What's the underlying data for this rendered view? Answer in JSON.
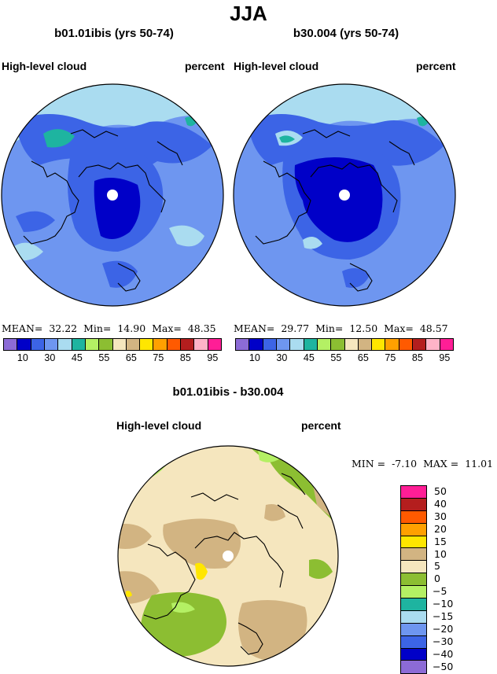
{
  "title": "JJA",
  "panels": [
    {
      "title": "b01.01ibis (yrs 50-74)",
      "variable": "High-level cloud",
      "units": "percent",
      "mean_label": "MEAN=",
      "mean": "32.22",
      "min_label": "Min=",
      "min": "14.90",
      "max_label": "Max=",
      "max": "48.35"
    },
    {
      "title": "b30.004 (yrs 50-74)",
      "variable": "High-level cloud",
      "units": "percent",
      "mean_label": "MEAN=",
      "mean": "29.77",
      "min_label": "Min=",
      "min": "12.50",
      "max_label": "Max=",
      "max": "48.57"
    }
  ],
  "colorbar": {
    "colors": [
      "#8c6bd6",
      "#0000c8",
      "#3c64e6",
      "#6e96f0",
      "#aadcf0",
      "#1eb4a0",
      "#b4f064",
      "#8cbe32",
      "#f5e6be",
      "#d2b482",
      "#ffe600",
      "#ffa000",
      "#ff5a00",
      "#b41e1e",
      "#ffb4c8",
      "#ff1e96"
    ],
    "labels": [
      "10",
      "30",
      "45",
      "55",
      "65",
      "75",
      "85",
      "95"
    ]
  },
  "diff": {
    "title": "b01.01ibis - b30.004",
    "variable": "High-level cloud",
    "units": "percent",
    "min_label": "MIN =",
    "min": "-7.10",
    "max_label": "MAX =",
    "max": "11.01",
    "colors": [
      "#ff1e96",
      "#b41e1e",
      "#ff5a00",
      "#ffa000",
      "#ffe600",
      "#d2b482",
      "#f5e6be",
      "#8cbe32",
      "#b4f064",
      "#1eb4a0",
      "#aadcf0",
      "#6e96f0",
      "#3c64e6",
      "#0000c8",
      "#8c6bd6"
    ],
    "labels": [
      "50",
      "40",
      "30",
      "20",
      "15",
      "10",
      "5",
      "0",
      "−5",
      "−10",
      "−15",
      "−20",
      "−30",
      "−40",
      "−50"
    ]
  }
}
